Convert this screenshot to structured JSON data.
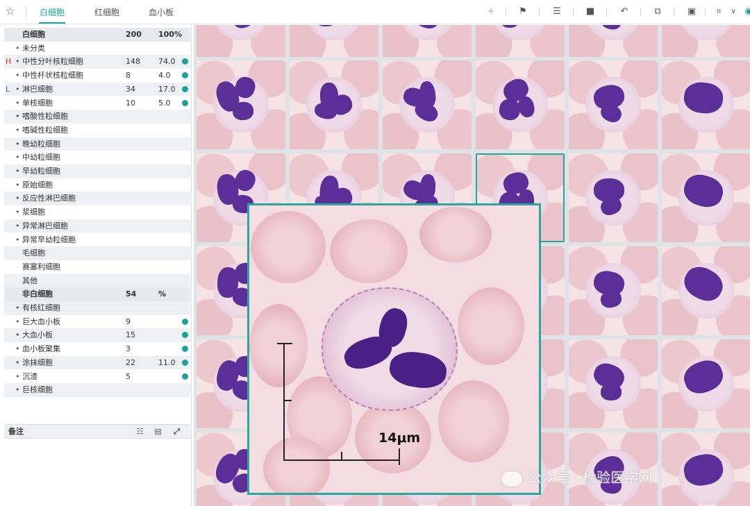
{
  "tabs": [
    {
      "label": "白细胞",
      "active": true
    },
    {
      "label": "红细胞",
      "active": false
    },
    {
      "label": "血小板",
      "active": false
    }
  ],
  "toolbar_icons": [
    "crosshair-icon",
    "flag-icon",
    "align-center-icon",
    "capture-icon",
    "undo-icon",
    "compare-icon",
    "bookmark-icon",
    "fit-screen-icon",
    "chevron-down-icon",
    "settings-icon"
  ],
  "wbc": {
    "header": {
      "name": "白细胞",
      "count": "200",
      "pct": "100%"
    },
    "rows": [
      {
        "flag": "",
        "name": "未分类",
        "count": "",
        "pct": "",
        "dot": false
      },
      {
        "flag": "H",
        "name": "中性分叶核粒细胞",
        "count": "148",
        "pct": "74.0",
        "dot": true
      },
      {
        "flag": "",
        "name": "中性杆状核粒细胞",
        "count": "8",
        "pct": "4.0",
        "dot": true
      },
      {
        "flag": "L",
        "name": "淋巴细胞",
        "count": "34",
        "pct": "17.0",
        "dot": true
      },
      {
        "flag": "",
        "name": "单核细胞",
        "count": "10",
        "pct": "5.0",
        "dot": true
      },
      {
        "flag": "",
        "name": "嗜酸性粒细胞",
        "count": "",
        "pct": "",
        "dot": false
      },
      {
        "flag": "",
        "name": "嗜碱性粒细胞",
        "count": "",
        "pct": "",
        "dot": false
      },
      {
        "flag": "",
        "name": "晚幼粒细胞",
        "count": "",
        "pct": "",
        "dot": false
      },
      {
        "flag": "",
        "name": "中幼粒细胞",
        "count": "",
        "pct": "",
        "dot": false
      },
      {
        "flag": "",
        "name": "早幼粒细胞",
        "count": "",
        "pct": "",
        "dot": false
      },
      {
        "flag": "",
        "name": "原始细胞",
        "count": "",
        "pct": "",
        "dot": false
      },
      {
        "flag": "",
        "name": "反应性淋巴细胞",
        "count": "",
        "pct": "",
        "dot": false
      },
      {
        "flag": "",
        "name": "浆细胞",
        "count": "",
        "pct": "",
        "dot": false
      },
      {
        "flag": "",
        "name": "异常淋巴细胞",
        "count": "",
        "pct": "",
        "dot": false
      },
      {
        "flag": "",
        "name": "异常早幼粒细胞",
        "count": "",
        "pct": "",
        "dot": false
      },
      {
        "flag": "",
        "name": "毛细胞",
        "count": "",
        "pct": "",
        "dot": false,
        "nobullet": true
      },
      {
        "flag": "",
        "name": "赛塞利细胞",
        "count": "",
        "pct": "",
        "dot": false,
        "nobullet": true
      },
      {
        "flag": "",
        "name": "其他",
        "count": "",
        "pct": "",
        "dot": false,
        "nobullet": true
      }
    ]
  },
  "non_wbc": {
    "header": {
      "name": "非白细胞",
      "count": "54",
      "pct": "%"
    },
    "rows": [
      {
        "flag": "",
        "name": "有核红细胞",
        "count": "",
        "pct": "",
        "dot": false
      },
      {
        "flag": "",
        "name": "巨大血小板",
        "count": "9",
        "pct": "",
        "dot": true
      },
      {
        "flag": "",
        "name": "大血小板",
        "count": "15",
        "pct": "",
        "dot": true
      },
      {
        "flag": "",
        "name": "血小板聚集",
        "count": "3",
        "pct": "",
        "dot": true
      },
      {
        "flag": "",
        "name": "涂抹细胞",
        "count": "22",
        "pct": "11.0",
        "dot": true
      },
      {
        "flag": "",
        "name": "沉渣",
        "count": "5",
        "pct": "",
        "dot": true
      },
      {
        "flag": "",
        "name": "巨核细胞",
        "count": "",
        "pct": "",
        "dot": false
      }
    ]
  },
  "notes": {
    "title": "备注"
  },
  "zoom": {
    "scale_label": "14μm"
  },
  "watermark": "公众号 · 检验医学网",
  "colors": {
    "accent": "#1aa39a",
    "flag_high": "#d9322b",
    "flag_low": "#2f62c9",
    "nucleus": "#5b2f97"
  }
}
